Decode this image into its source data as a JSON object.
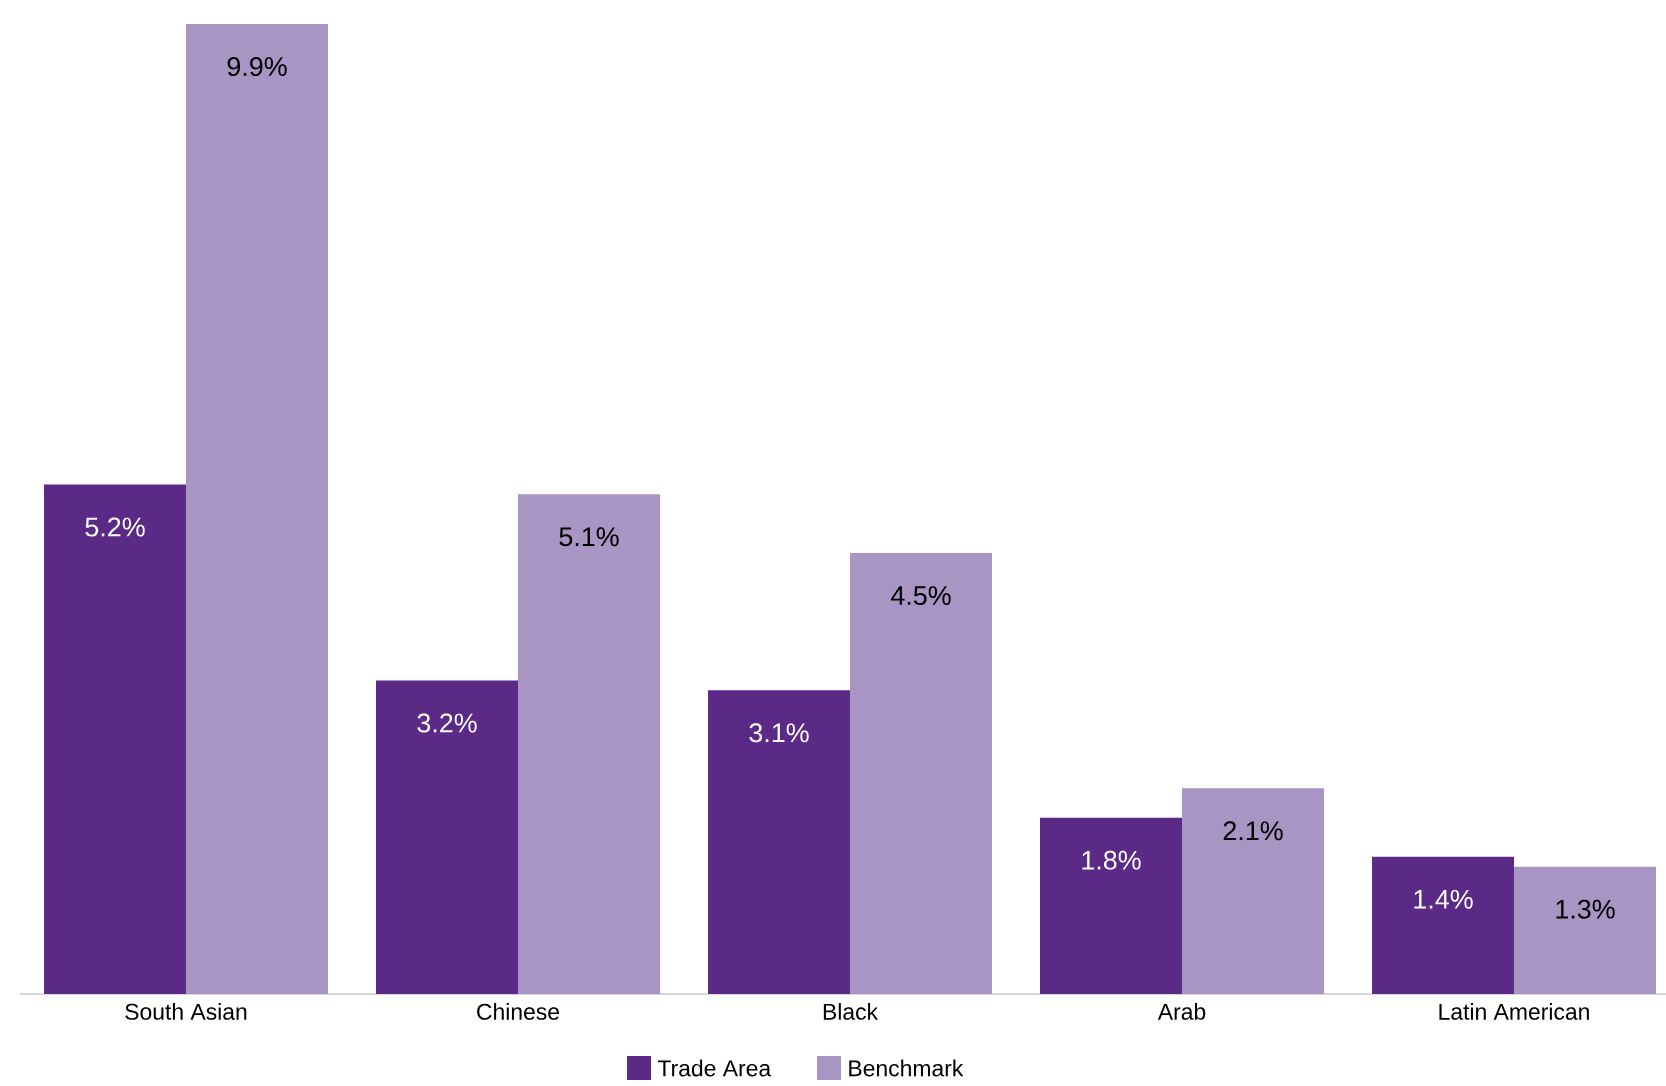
{
  "chart_data": {
    "type": "bar",
    "categories": [
      "South Asian",
      "Chinese",
      "Black",
      "Arab",
      "Latin American"
    ],
    "series": [
      {
        "name": "Trade Area",
        "color": "#5b2a86",
        "values": [
          5.2,
          3.2,
          3.1,
          1.8,
          1.4
        ],
        "value_labels": [
          "5.2%",
          "3.2%",
          "3.1%",
          "1.8%",
          "1.4%"
        ]
      },
      {
        "name": "Benchmark",
        "color": "#a995c4",
        "values": [
          9.9,
          5.1,
          4.5,
          2.1,
          1.3
        ],
        "value_labels": [
          "9.9%",
          "5.1%",
          "4.5%",
          "2.1%",
          "1.3%"
        ]
      }
    ],
    "legend": "bottom"
  }
}
